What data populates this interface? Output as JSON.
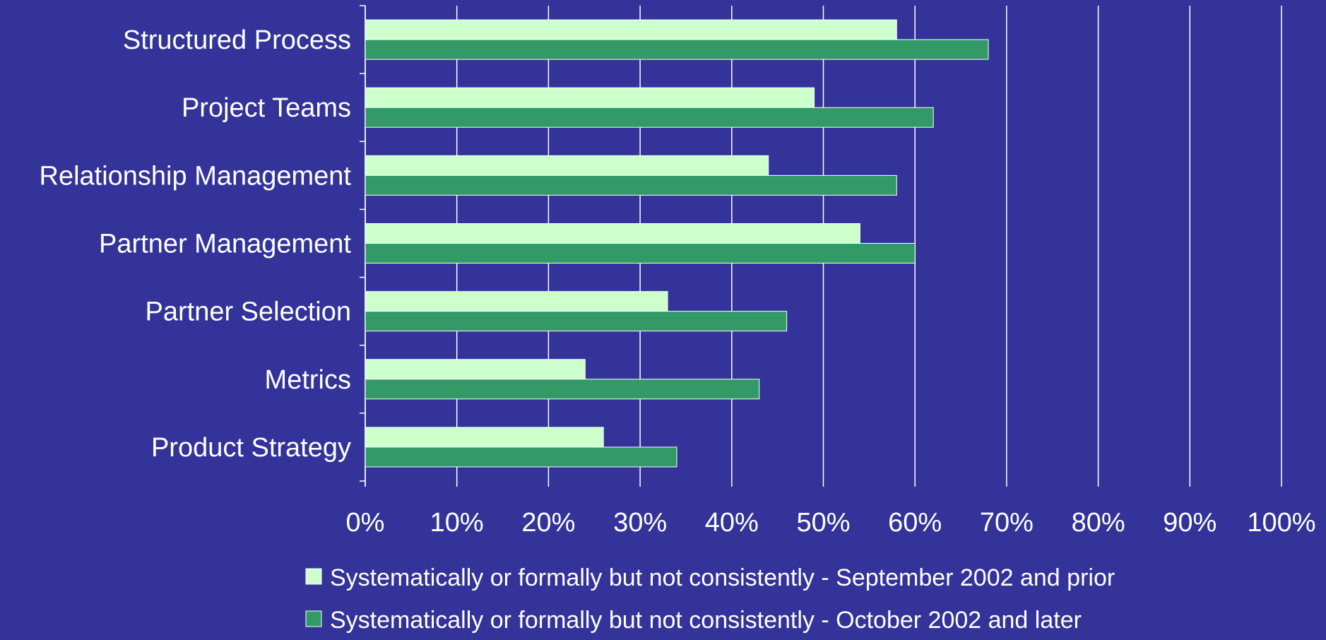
{
  "background_color": "#333399",
  "chart_data": {
    "type": "bar",
    "orientation": "horizontal",
    "categories": [
      "Structured Process",
      "Project Teams",
      "Relationship Management",
      "Partner Management",
      "Partner Selection",
      "Metrics",
      "Product Strategy"
    ],
    "series": [
      {
        "name": "Systematically or formally but not consistently - September 2002 and prior",
        "color": "#ccffcc",
        "values": [
          58,
          49,
          44,
          54,
          33,
          24,
          26
        ]
      },
      {
        "name": "Systematically or formally but not consistently - October 2002 and later",
        "color": "#339966",
        "values": [
          68,
          62,
          58,
          60,
          46,
          43,
          34
        ]
      }
    ],
    "xlim": [
      0,
      100
    ],
    "x_ticks": [
      0,
      10,
      20,
      30,
      40,
      50,
      60,
      70,
      80,
      90,
      100
    ],
    "x_tick_labels": [
      "0%",
      "10%",
      "20%",
      "30%",
      "40%",
      "50%",
      "60%",
      "70%",
      "80%",
      "90%",
      "100%"
    ],
    "grid": true,
    "legend_position": "bottom",
    "title": "",
    "xlabel": "",
    "ylabel": ""
  }
}
